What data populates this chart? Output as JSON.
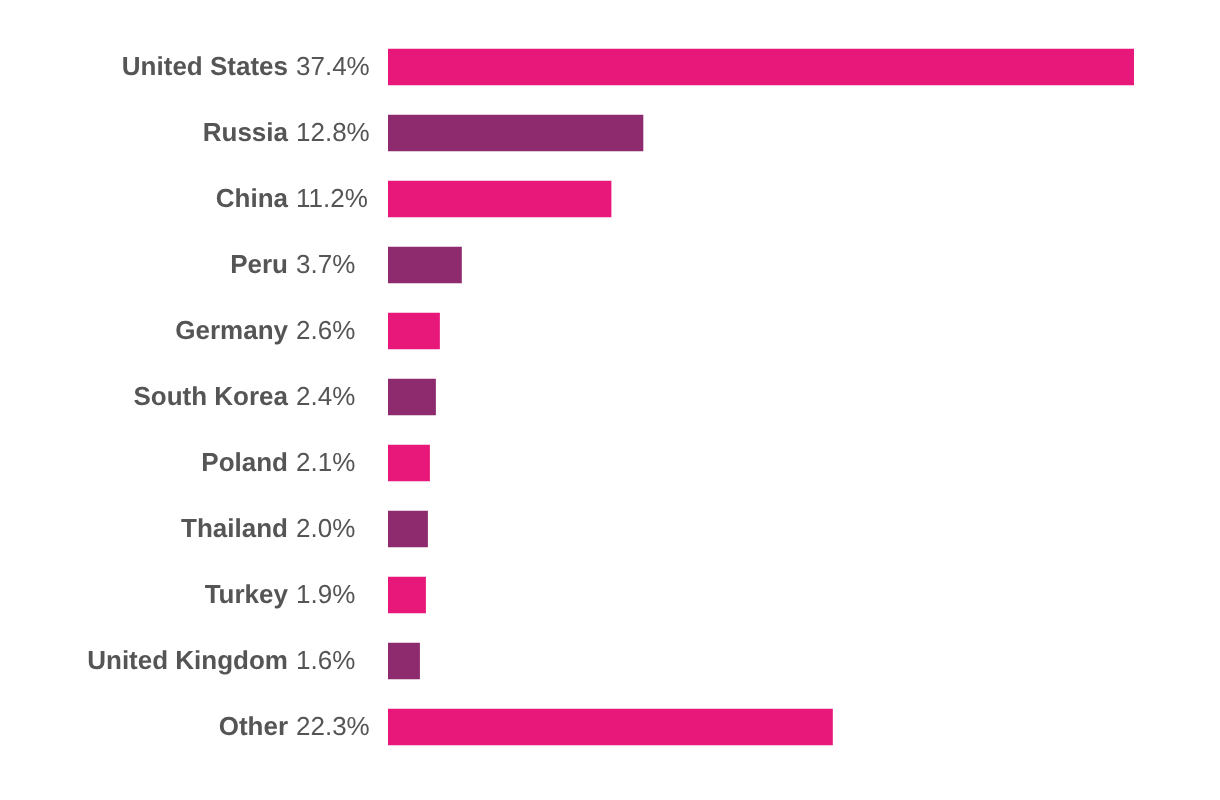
{
  "chart_data": {
    "type": "bar",
    "orientation": "horizontal",
    "categories": [
      "United States",
      "Russia",
      "China",
      "Peru",
      "Germany",
      "South Korea",
      "Poland",
      "Thailand",
      "Turkey",
      "United Kingdom",
      "Other"
    ],
    "values": [
      37.4,
      12.8,
      11.2,
      3.7,
      2.6,
      2.4,
      2.1,
      2.0,
      1.9,
      1.6,
      22.3
    ],
    "value_labels": [
      "37.4%",
      "12.8%",
      "11.2%",
      "3.7%",
      "2.6%",
      "2.4%",
      "2.1%",
      "2.0%",
      "1.9%",
      "1.6%",
      "22.3%"
    ],
    "colors": [
      "#e8177a",
      "#8d2b6e",
      "#e8177a",
      "#8d2b6e",
      "#e8177a",
      "#8d2b6e",
      "#e8177a",
      "#8d2b6e",
      "#e8177a",
      "#8d2b6e",
      "#e8177a"
    ]
  }
}
